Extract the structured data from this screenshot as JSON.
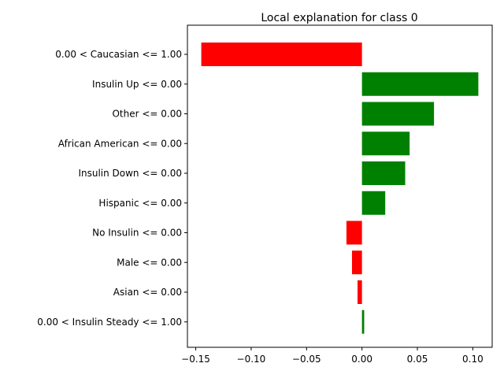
{
  "chart_data": {
    "type": "bar",
    "orientation": "horizontal",
    "title": "Local explanation for class 0",
    "xlabel": "",
    "ylabel": "",
    "xlim": [
      -0.1575,
      0.1175
    ],
    "grid": false,
    "xticks": [
      -0.15,
      -0.1,
      -0.05,
      0.0,
      0.05,
      0.1
    ],
    "xtick_labels": [
      "−0.15",
      "−0.10",
      "−0.05",
      "0.00",
      "0.05",
      "0.10"
    ],
    "colors": {
      "positive": "#008000",
      "negative": "#ff0000"
    },
    "categories": [
      "0.00 < Caucasian <= 1.00",
      "Insulin Up <= 0.00",
      "Other <= 0.00",
      "African American <= 0.00",
      "Insulin Down <= 0.00",
      "Hispanic <= 0.00",
      "No Insulin <= 0.00",
      "Male <= 0.00",
      "Asian <= 0.00",
      "0.00 < Insulin Steady <= 1.00"
    ],
    "values": [
      -0.145,
      0.105,
      0.065,
      0.043,
      0.039,
      0.021,
      -0.014,
      -0.009,
      -0.004,
      0.002
    ]
  }
}
